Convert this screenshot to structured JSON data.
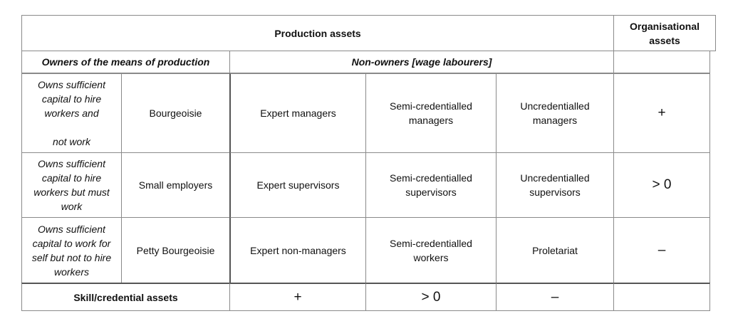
{
  "header": {
    "production_assets": "Production assets",
    "organisational_assets": "Organisational\nassets"
  },
  "subheader": {
    "owners": "Owners of the means of production",
    "non_owners": "Non-owners [wage labourers]"
  },
  "rows": [
    {
      "owner_description": "Owns sufficient\ncapital to hire\nworkers and\n\nnot work",
      "owner_class": "Bourgeoisie",
      "expert": "Expert managers",
      "semi": "Semi-credentialled\nmanagers",
      "uncred": "Uncredentialled\nmanagers",
      "org": "+"
    },
    {
      "owner_description": "Owns sufficient\ncapital to hire\nworkers but must\nwork",
      "owner_class": "Small employers",
      "expert": "Expert supervisors",
      "semi": "Semi-credentialled\nsupervisors",
      "uncred": "Uncredentialled\nsupervisors",
      "org": "> 0"
    },
    {
      "owner_description": "Owns sufficient\ncapital to work for\nself but not to hire\nworkers",
      "owner_class": "Petty Bourgeoisie",
      "expert": "Expert non-managers",
      "semi": "Semi-credentialled\nworkers",
      "uncred": "Proletariat",
      "org": "–"
    }
  ],
  "footer": {
    "label": "Skill/credential assets",
    "expert": "+",
    "semi": "> 0",
    "uncred": "–"
  }
}
